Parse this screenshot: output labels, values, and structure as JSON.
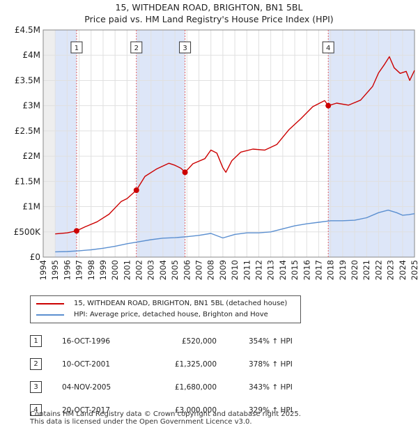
{
  "title": "15, WITHDEAN ROAD, BRIGHTON, BN1 5BL",
  "subtitle": "Price paid vs. HM Land Registry's House Price Index (HPI)",
  "colors": {
    "property": "#cc0000",
    "hpi": "#5b8fd0",
    "shade": "#dde6f8",
    "grid": "#e0e0e0",
    "marker_line": "#e06060"
  },
  "legend": {
    "property": "15, WITHDEAN ROAD, BRIGHTON, BN1 5BL (detached house)",
    "hpi": "HPI: Average price, detached house, Brighton and Hove"
  },
  "chart_data": {
    "type": "line",
    "title": "15, WITHDEAN ROAD, BRIGHTON, BN1 5BL",
    "xlim": [
      1995,
      2025
    ],
    "ylim": [
      0,
      4500000
    ],
    "y_ticks": [
      0,
      500000,
      1000000,
      1500000,
      2000000,
      2500000,
      3000000,
      3500000,
      4000000,
      4500000
    ],
    "y_tick_labels": [
      "£0",
      "£500K",
      "£1M",
      "£1.5M",
      "£2M",
      "£2.5M",
      "£3M",
      "£3.5M",
      "£4M",
      "£4.5M"
    ],
    "x_ticks": [
      1994,
      1995,
      1996,
      1997,
      1998,
      1999,
      2000,
      2001,
      2002,
      2003,
      2004,
      2005,
      2006,
      2007,
      2008,
      2009,
      2010,
      2011,
      2012,
      2013,
      2014,
      2015,
      2016,
      2017,
      2018,
      2019,
      2020,
      2021,
      2022,
      2023,
      2024,
      2025
    ],
    "series": [
      {
        "name": "15, WITHDEAN ROAD, BRIGHTON, BN1 5BL (detached house)",
        "x": [
          1995.0,
          1996.0,
          1996.79,
          1997.5,
          1998.5,
          1999.5,
          2000.5,
          2001.0,
          2001.78,
          2002.5,
          2003.5,
          2004.5,
          2005.0,
          2005.5,
          2005.84,
          2006.5,
          2007.5,
          2008.0,
          2008.5,
          2009.0,
          2009.25,
          2009.75,
          2010.5,
          2011.5,
          2012.5,
          2013.5,
          2014.5,
          2015.5,
          2016.5,
          2017.5,
          2017.8,
          2018.5,
          2019.5,
          2020.5,
          2021.5,
          2022.0,
          2022.5,
          2022.9,
          2023.3,
          2023.8,
          2024.3,
          2024.6,
          2025.0
        ],
        "values": [
          460000,
          480000,
          520000,
          600000,
          700000,
          850000,
          1100000,
          1160000,
          1325000,
          1600000,
          1750000,
          1860000,
          1820000,
          1760000,
          1680000,
          1850000,
          1950000,
          2120000,
          2060000,
          1770000,
          1680000,
          1910000,
          2080000,
          2140000,
          2120000,
          2230000,
          2520000,
          2740000,
          2980000,
          3100000,
          3000000,
          3050000,
          3010000,
          3110000,
          3380000,
          3650000,
          3820000,
          3970000,
          3750000,
          3640000,
          3680000,
          3500000,
          3700000
        ]
      },
      {
        "name": "HPI: Average price, detached house, Brighton and Hove",
        "x": [
          1995.0,
          1996.0,
          1997.0,
          1998.0,
          1999.0,
          2000.0,
          2001.0,
          2002.0,
          2003.0,
          2004.0,
          2005.0,
          2006.0,
          2007.0,
          2008.0,
          2009.0,
          2010.0,
          2011.0,
          2012.0,
          2013.0,
          2014.0,
          2015.0,
          2016.0,
          2017.0,
          2018.0,
          2019.0,
          2020.0,
          2021.0,
          2022.0,
          2022.8,
          2023.5,
          2024.0,
          2024.5,
          2025.0
        ],
        "values": [
          105000,
          110000,
          125000,
          145000,
          175000,
          215000,
          265000,
          305000,
          345000,
          375000,
          385000,
          405000,
          430000,
          470000,
          380000,
          450000,
          480000,
          480000,
          500000,
          560000,
          620000,
          660000,
          690000,
          720000,
          720000,
          730000,
          780000,
          880000,
          930000,
          880000,
          830000,
          840000,
          860000
        ]
      }
    ],
    "sales": [
      {
        "n": "1",
        "x": 1996.79,
        "value": 520000
      },
      {
        "n": "2",
        "x": 2001.78,
        "value": 1325000
      },
      {
        "n": "3",
        "x": 2005.84,
        "value": 1680000
      },
      {
        "n": "4",
        "x": 2017.8,
        "value": 3000000
      }
    ],
    "shaded_spans": [
      [
        1995,
        1996.79
      ],
      [
        2001.78,
        2005.84
      ],
      [
        2017.8,
        2025
      ]
    ]
  },
  "sales_table": [
    {
      "num": "1",
      "date": "16-OCT-1996",
      "price": "£520,000",
      "hpi": "354% ↑ HPI"
    },
    {
      "num": "2",
      "date": "10-OCT-2001",
      "price": "£1,325,000",
      "hpi": "378% ↑ HPI"
    },
    {
      "num": "3",
      "date": "04-NOV-2005",
      "price": "£1,680,000",
      "hpi": "343% ↑ HPI"
    },
    {
      "num": "4",
      "date": "20-OCT-2017",
      "price": "£3,000,000",
      "hpi": "329% ↑ HPI"
    }
  ],
  "footer": {
    "line1": "Contains HM Land Registry data © Crown copyright and database right 2025.",
    "line2": "This data is licensed under the Open Government Licence v3.0."
  }
}
